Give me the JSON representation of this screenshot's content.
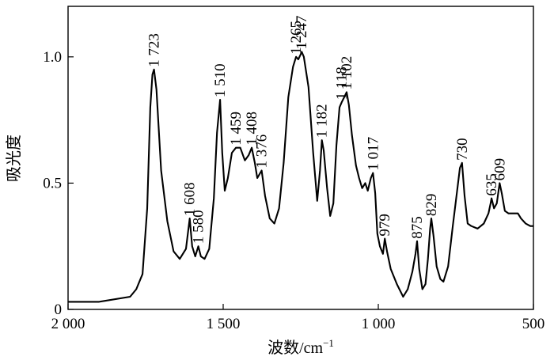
{
  "chart_data": {
    "type": "line",
    "title": "",
    "xlabel": "波数/cm",
    "xlabel_superscript": "−1",
    "ylabel": "吸光度",
    "xlim": [
      2000,
      500
    ],
    "ylim": [
      0,
      1.2
    ],
    "x_reversed": true,
    "x_ticks": [
      {
        "value": 2000,
        "label": "2 000"
      },
      {
        "value": 1500,
        "label": "1 500"
      },
      {
        "value": 1000,
        "label": "1 000"
      },
      {
        "value": 500,
        "label": "500"
      }
    ],
    "y_ticks": [
      {
        "value": 0,
        "label": "0"
      },
      {
        "value": 0.5,
        "label": "0.5"
      },
      {
        "value": 1.0,
        "label": "1.0"
      }
    ],
    "series": [
      {
        "points": [
          [
            2000,
            0.03
          ],
          [
            1900,
            0.03
          ],
          [
            1800,
            0.05
          ],
          [
            1780,
            0.08
          ],
          [
            1760,
            0.14
          ],
          [
            1745,
            0.4
          ],
          [
            1735,
            0.8
          ],
          [
            1728,
            0.93
          ],
          [
            1723,
            0.95
          ],
          [
            1715,
            0.87
          ],
          [
            1700,
            0.55
          ],
          [
            1680,
            0.35
          ],
          [
            1660,
            0.23
          ],
          [
            1640,
            0.2
          ],
          [
            1620,
            0.24
          ],
          [
            1608,
            0.36
          ],
          [
            1600,
            0.25
          ],
          [
            1590,
            0.21
          ],
          [
            1580,
            0.25
          ],
          [
            1572,
            0.21
          ],
          [
            1560,
            0.2
          ],
          [
            1545,
            0.24
          ],
          [
            1530,
            0.44
          ],
          [
            1520,
            0.7
          ],
          [
            1510,
            0.83
          ],
          [
            1503,
            0.62
          ],
          [
            1495,
            0.47
          ],
          [
            1485,
            0.52
          ],
          [
            1472,
            0.62
          ],
          [
            1459,
            0.64
          ],
          [
            1445,
            0.64
          ],
          [
            1430,
            0.59
          ],
          [
            1418,
            0.61
          ],
          [
            1408,
            0.64
          ],
          [
            1398,
            0.58
          ],
          [
            1390,
            0.52
          ],
          [
            1376,
            0.55
          ],
          [
            1365,
            0.45
          ],
          [
            1350,
            0.36
          ],
          [
            1335,
            0.34
          ],
          [
            1320,
            0.4
          ],
          [
            1305,
            0.58
          ],
          [
            1290,
            0.84
          ],
          [
            1275,
            0.96
          ],
          [
            1265,
            1.0
          ],
          [
            1258,
            0.99
          ],
          [
            1250,
            1.01
          ],
          [
            1247,
            1.02
          ],
          [
            1240,
            1.0
          ],
          [
            1225,
            0.88
          ],
          [
            1210,
            0.62
          ],
          [
            1197,
            0.43
          ],
          [
            1188,
            0.55
          ],
          [
            1182,
            0.67
          ],
          [
            1176,
            0.63
          ],
          [
            1165,
            0.48
          ],
          [
            1155,
            0.37
          ],
          [
            1145,
            0.42
          ],
          [
            1135,
            0.65
          ],
          [
            1125,
            0.8
          ],
          [
            1118,
            0.82
          ],
          [
            1110,
            0.84
          ],
          [
            1102,
            0.86
          ],
          [
            1095,
            0.81
          ],
          [
            1085,
            0.69
          ],
          [
            1072,
            0.57
          ],
          [
            1062,
            0.52
          ],
          [
            1052,
            0.48
          ],
          [
            1042,
            0.5
          ],
          [
            1034,
            0.47
          ],
          [
            1024,
            0.52
          ],
          [
            1017,
            0.54
          ],
          [
            1010,
            0.46
          ],
          [
            1003,
            0.3
          ],
          [
            995,
            0.25
          ],
          [
            985,
            0.22
          ],
          [
            979,
            0.28
          ],
          [
            972,
            0.23
          ],
          [
            960,
            0.16
          ],
          [
            940,
            0.1
          ],
          [
            920,
            0.05
          ],
          [
            905,
            0.08
          ],
          [
            890,
            0.15
          ],
          [
            880,
            0.22
          ],
          [
            875,
            0.27
          ],
          [
            868,
            0.16
          ],
          [
            858,
            0.08
          ],
          [
            848,
            0.1
          ],
          [
            840,
            0.2
          ],
          [
            833,
            0.32
          ],
          [
            829,
            0.36
          ],
          [
            822,
            0.29
          ],
          [
            812,
            0.17
          ],
          [
            800,
            0.12
          ],
          [
            790,
            0.11
          ],
          [
            775,
            0.17
          ],
          [
            760,
            0.33
          ],
          [
            745,
            0.48
          ],
          [
            737,
            0.56
          ],
          [
            730,
            0.58
          ],
          [
            722,
            0.45
          ],
          [
            712,
            0.34
          ],
          [
            700,
            0.33
          ],
          [
            680,
            0.32
          ],
          [
            660,
            0.34
          ],
          [
            645,
            0.38
          ],
          [
            638,
            0.42
          ],
          [
            635,
            0.44
          ],
          [
            627,
            0.4
          ],
          [
            618,
            0.42
          ],
          [
            609,
            0.5
          ],
          [
            602,
            0.46
          ],
          [
            592,
            0.39
          ],
          [
            580,
            0.38
          ],
          [
            565,
            0.38
          ],
          [
            550,
            0.38
          ],
          [
            540,
            0.36
          ],
          [
            525,
            0.34
          ],
          [
            510,
            0.33
          ],
          [
            500,
            0.33
          ]
        ]
      }
    ],
    "peak_labels": [
      {
        "x": 1723,
        "y": 0.95,
        "label": "1 723"
      },
      {
        "x": 1608,
        "y": 0.36,
        "label": "1 608"
      },
      {
        "x": 1580,
        "y": 0.25,
        "label": "1 580"
      },
      {
        "x": 1510,
        "y": 0.83,
        "label": "1 510"
      },
      {
        "x": 1459,
        "y": 0.64,
        "label": "1 459"
      },
      {
        "x": 1408,
        "y": 0.64,
        "label": "1 408"
      },
      {
        "x": 1376,
        "y": 0.55,
        "label": "1 376"
      },
      {
        "x": 1265,
        "y": 1.0,
        "label": "1 265"
      },
      {
        "x": 1247,
        "y": 1.02,
        "label": "1 247"
      },
      {
        "x": 1182,
        "y": 0.67,
        "label": "1 182"
      },
      {
        "x": 1118,
        "y": 0.82,
        "label": "1 118"
      },
      {
        "x": 1102,
        "y": 0.86,
        "label": "1 102"
      },
      {
        "x": 1017,
        "y": 0.54,
        "label": "1 017"
      },
      {
        "x": 979,
        "y": 0.28,
        "label": "979"
      },
      {
        "x": 875,
        "y": 0.27,
        "label": "875"
      },
      {
        "x": 829,
        "y": 0.36,
        "label": "829"
      },
      {
        "x": 730,
        "y": 0.58,
        "label": "730"
      },
      {
        "x": 635,
        "y": 0.44,
        "label": "635"
      },
      {
        "x": 609,
        "y": 0.5,
        "label": "609"
      }
    ],
    "grid": false,
    "legend": "none"
  }
}
